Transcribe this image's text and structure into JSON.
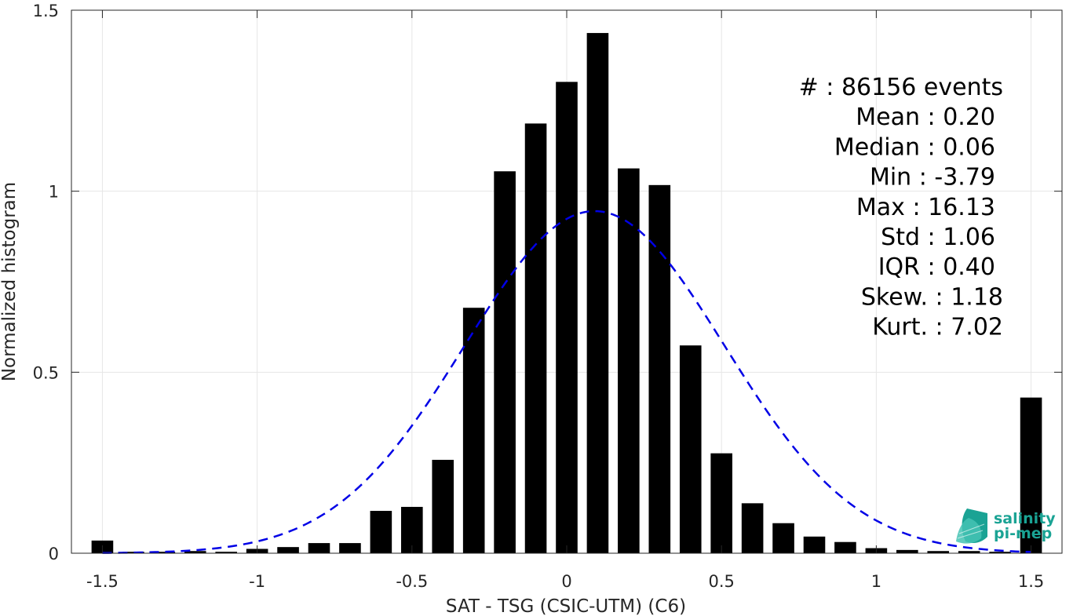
{
  "chart_data": {
    "type": "bar",
    "xlabel": "SAT - TSG (CSIC-UTM) (C6)",
    "ylabel": "Normalized histogram",
    "xlim": [
      -1.6,
      1.6
    ],
    "ylim": [
      0,
      1.5
    ],
    "xticks": [
      -1.5,
      -1,
      -0.5,
      0,
      0.5,
      1,
      1.5
    ],
    "xtick_labels": [
      "-1.5",
      "-1",
      "-0.5",
      "0",
      "0.5",
      "1",
      "1.5"
    ],
    "yticks": [
      0,
      0.5,
      1,
      1.5
    ],
    "ytick_labels": [
      "0",
      "0.5",
      "1",
      "1.5"
    ],
    "grid": true,
    "bar_color": "#000000",
    "bar_width": 0.07,
    "x": [
      -1.5,
      -1.4,
      -1.3,
      -1.2,
      -1.1,
      -1.0,
      -0.9,
      -0.8,
      -0.7,
      -0.6,
      -0.5,
      -0.4,
      -0.3,
      -0.2,
      -0.1,
      0.0,
      0.1,
      0.2,
      0.3,
      0.4,
      0.5,
      0.6,
      0.7,
      0.8,
      0.9,
      1.0,
      1.1,
      1.2,
      1.3,
      1.4,
      1.5
    ],
    "values": [
      0.035,
      0.004,
      0.004,
      0.006,
      0.004,
      0.012,
      0.017,
      0.028,
      0.028,
      0.117,
      0.128,
      0.258,
      0.678,
      1.055,
      1.187,
      1.302,
      1.437,
      1.063,
      1.017,
      0.574,
      0.276,
      0.138,
      0.083,
      0.046,
      0.031,
      0.014,
      0.009,
      0.006,
      0.006,
      0.004,
      0.43
    ],
    "fit_curve": {
      "style": "dashed",
      "color": "#0000e6",
      "mean": 0.09,
      "std": 0.42,
      "peak": 0.945
    },
    "annotations": [
      "#  : 86156 events",
      "Mean : 0.20",
      "Median : 0.06",
      "Min : -3.79",
      "Max : 16.13",
      "Std : 1.06",
      "IQR : 0.40",
      "Skew. : 1.18",
      "Kurt. : 7.02"
    ]
  },
  "logo": {
    "line1": "salinity",
    "line2": "pi-mep",
    "color": "#1aa394"
  }
}
